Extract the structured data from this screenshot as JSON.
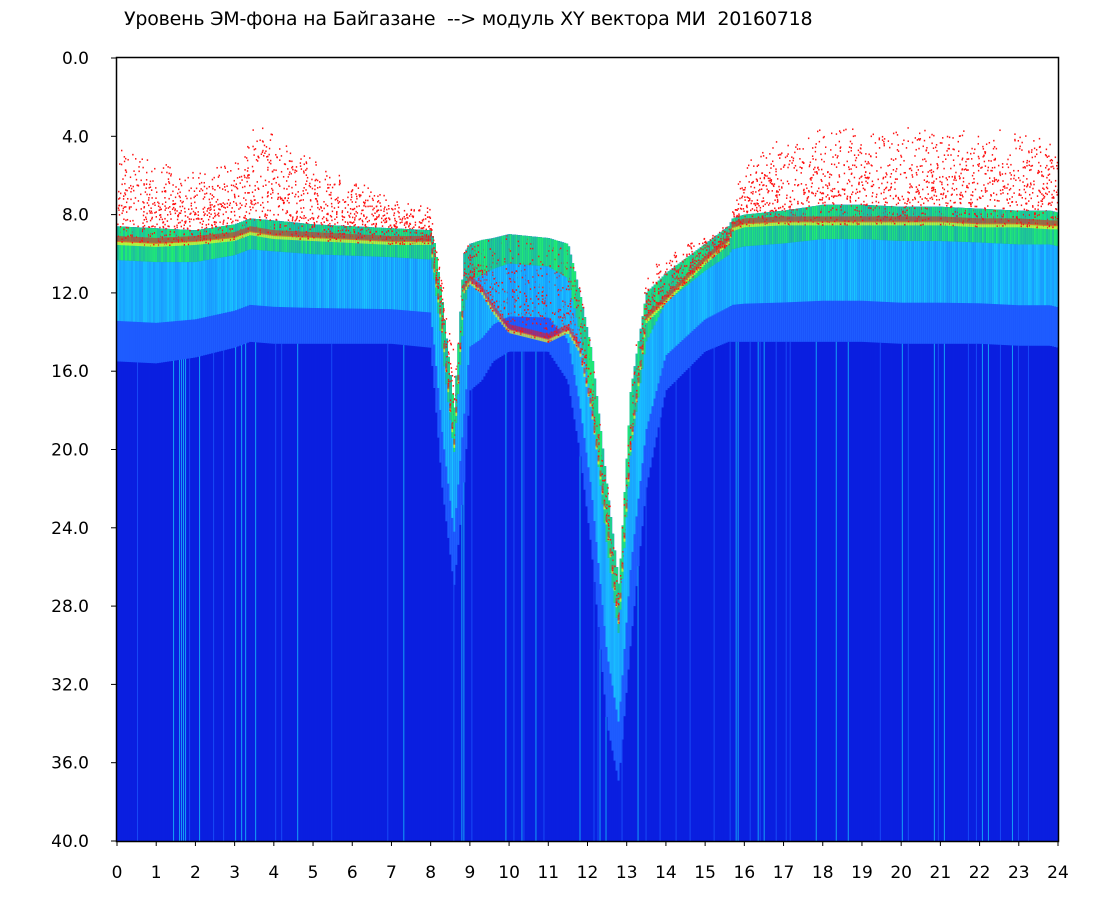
{
  "chart_data": {
    "type": "heatmap",
    "title": "Уровень ЭМ-фона на Байгазане  --> модуль XY вектора МИ  20160718",
    "xlabel": "",
    "ylabel": "",
    "xlim": [
      0,
      24
    ],
    "ylim": [
      0,
      40
    ],
    "y_inverted": true,
    "x_ticks": [
      0,
      1,
      2,
      3,
      4,
      5,
      6,
      7,
      8,
      9,
      10,
      11,
      12,
      13,
      14,
      15,
      16,
      17,
      18,
      19,
      20,
      21,
      22,
      23,
      24
    ],
    "y_ticks": [
      "0.0",
      "4.0",
      "8.0",
      "12.0",
      "16.0",
      "20.0",
      "24.0",
      "28.0",
      "32.0",
      "36.0",
      "40.0"
    ],
    "colormap": [
      "#0a1fe0",
      "#1e5cff",
      "#18d8ff",
      "#20ff60",
      "#f0ff20",
      "#ff1010"
    ],
    "grid": false,
    "legend": "none",
    "envelope": {
      "hours": [
        0,
        1,
        2,
        3,
        3.4,
        4,
        5,
        6,
        7,
        8,
        8.1,
        8.3,
        8.6,
        8.85,
        9.0,
        9.3,
        9.6,
        10,
        11,
        11.5,
        11.8,
        12.1,
        12.5,
        12.8,
        13.1,
        13.5,
        14,
        15,
        15.6,
        15.7,
        16,
        17,
        18,
        19,
        20,
        21,
        22,
        23,
        23.8,
        24
      ],
      "noise_top": [
        8.6,
        8.7,
        8.8,
        8.5,
        8.2,
        8.3,
        8.5,
        8.6,
        8.7,
        8.8,
        9.5,
        12.5,
        18.0,
        10.0,
        9.5,
        9.3,
        9.2,
        9.0,
        9.2,
        9.5,
        12.0,
        15.0,
        22.0,
        27.0,
        17.0,
        12.0,
        11.0,
        9.5,
        8.6,
        8.2,
        8.0,
        7.8,
        7.5,
        7.5,
        7.6,
        7.6,
        7.7,
        7.8,
        7.8,
        7.9
      ],
      "noise_bottom": [
        15.5,
        15.6,
        15.3,
        14.8,
        14.5,
        14.6,
        14.6,
        14.6,
        14.6,
        14.8,
        17.0,
        22.0,
        27.0,
        22.0,
        17.0,
        16.5,
        15.5,
        15.0,
        15.0,
        16.5,
        20.0,
        25.0,
        34.0,
        37.0,
        30.0,
        22.0,
        17.0,
        15.0,
        14.5,
        14.5,
        14.5,
        14.5,
        14.5,
        14.5,
        14.6,
        14.6,
        14.6,
        14.7,
        14.7,
        14.8
      ],
      "red_from": [
        4.5,
        5.0,
        5.5,
        5.2,
        3.2,
        3.5,
        5.0,
        6.0,
        7.0,
        7.5,
        9.0,
        11.0,
        15.0,
        9.5,
        9.2,
        9.0,
        9.0,
        8.6,
        9.0,
        9.5,
        11.5,
        15.0,
        22.0,
        27.0,
        16.0,
        11.0,
        10.0,
        9.0,
        8.5,
        7.5,
        5.0,
        4.0,
        3.5,
        3.5,
        3.5,
        3.5,
        3.5,
        3.5,
        3.5,
        4.0
      ],
      "red_to": [
        9.5,
        9.6,
        9.5,
        9.3,
        9.0,
        9.2,
        9.3,
        9.4,
        9.5,
        9.5,
        11.0,
        14.0,
        20.0,
        12.0,
        11.5,
        12.0,
        13.0,
        14.0,
        14.5,
        14.0,
        15.0,
        18.0,
        24.0,
        29.0,
        20.0,
        13.5,
        12.5,
        10.5,
        9.5,
        8.8,
        8.6,
        8.5,
        8.5,
        8.5,
        8.5,
        8.5,
        8.6,
        8.6,
        8.7,
        8.7
      ]
    }
  }
}
